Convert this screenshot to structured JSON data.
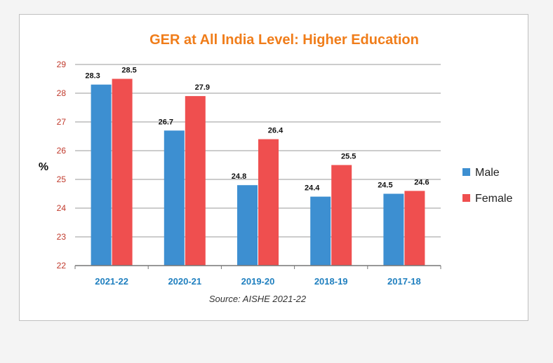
{
  "chart_data": {
    "type": "bar",
    "title": "GER at All India Level: Higher Education",
    "ylabel": "%",
    "source": "Source: AISHE 2021-22",
    "categories": [
      "2021-22",
      "2020-21",
      "2019-20",
      "2018-19",
      "2017-18"
    ],
    "series": [
      {
        "name": "Male",
        "color": "#3d8fd1",
        "values": [
          28.3,
          26.7,
          24.8,
          24.4,
          24.5
        ]
      },
      {
        "name": "Female",
        "color": "#ef4f4f",
        "values": [
          28.5,
          27.9,
          26.4,
          25.5,
          24.6
        ]
      }
    ],
    "ylim": [
      22,
      29
    ],
    "yticks": [
      "22",
      "23",
      "24",
      "25",
      "26",
      "27",
      "28",
      "29"
    ],
    "grid": true,
    "legend": "right",
    "colors": {
      "title": "#f07d1a",
      "tick": "#c0392b",
      "category": "#1f7fbf",
      "grid": "#9a9a9a"
    }
  }
}
